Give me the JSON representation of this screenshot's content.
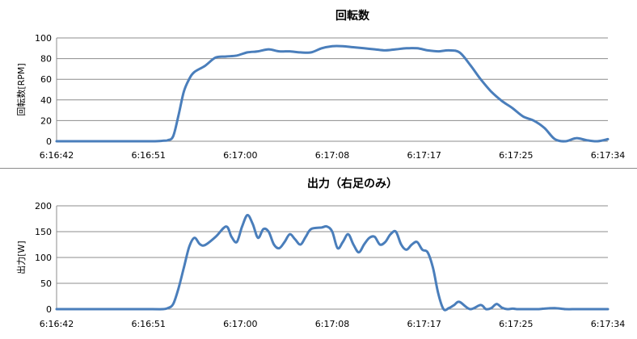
{
  "chart_data": [
    {
      "type": "line",
      "title": "回転数",
      "xlabel": "",
      "ylabel": "回転数[RPM]",
      "ylim": [
        0,
        100
      ],
      "yticks": [
        0,
        20,
        40,
        60,
        80,
        100
      ],
      "xticks": [
        "6:16:42",
        "6:16:51",
        "6:17:00",
        "6:17:08",
        "6:17:17",
        "6:17:25",
        "6:17:34"
      ],
      "x_range_seconds": [
        0,
        52
      ],
      "grid": true,
      "legend": "none",
      "color": "#4a7ebb",
      "series": [
        {
          "x": [
            0,
            5,
            9,
            10,
            10.5,
            11,
            11.5,
            12,
            12.5,
            13,
            14,
            15,
            16,
            17,
            18,
            19,
            20,
            21,
            22,
            23,
            24,
            25,
            26,
            27,
            28,
            29,
            30,
            31,
            32,
            33,
            34,
            35,
            36,
            37,
            38,
            39,
            40,
            41,
            42,
            43,
            44,
            45,
            46,
            47,
            48,
            49,
            50,
            51,
            52
          ],
          "y": [
            0,
            0,
            0,
            0.5,
            1,
            5,
            25,
            48,
            60,
            67,
            73,
            81,
            82,
            83,
            86,
            87,
            89,
            87,
            87,
            86,
            86,
            90,
            92,
            92,
            91,
            90,
            89,
            88,
            89,
            90,
            90,
            88,
            87,
            88,
            86,
            74,
            60,
            48,
            39,
            32,
            24,
            20,
            13,
            2,
            0,
            3,
            1,
            0,
            2
          ]
        }
      ]
    },
    {
      "type": "line",
      "title": "出力（右足のみ）",
      "xlabel": "",
      "ylabel": "出力[W]",
      "ylim": [
        0,
        200
      ],
      "yticks": [
        0,
        50,
        100,
        150,
        200
      ],
      "xticks": [
        "6:16:42",
        "6:16:51",
        "6:17:00",
        "6:17:08",
        "6:17:17",
        "6:17:25",
        "6:17:34"
      ],
      "x_range_seconds": [
        0,
        52
      ],
      "grid": true,
      "legend": "none",
      "color": "#4a7ebb",
      "series": [
        {
          "x": [
            0,
            5,
            9,
            10,
            10.5,
            11,
            11.5,
            12,
            12.5,
            13,
            13.5,
            14,
            15,
            16,
            16.5,
            17,
            17.5,
            18,
            18.5,
            19,
            19.5,
            20,
            20.5,
            21,
            21.5,
            22,
            22.5,
            23,
            23.5,
            24,
            25,
            25.5,
            26,
            26.5,
            27,
            27.5,
            28,
            28.5,
            29,
            29.5,
            30,
            30.5,
            31,
            31.5,
            32,
            32.5,
            33,
            33.5,
            34,
            34.5,
            35,
            35.5,
            36,
            36.5,
            37,
            37.5,
            38,
            39,
            40,
            40.5,
            41,
            41.5,
            42,
            42.5,
            43,
            43.5,
            44,
            44.5,
            45,
            45.5,
            46,
            47,
            48,
            49,
            50,
            51,
            52
          ],
          "y": [
            0,
            0,
            0,
            0,
            2,
            10,
            40,
            80,
            120,
            138,
            126,
            124,
            140,
            160,
            140,
            130,
            160,
            182,
            165,
            138,
            155,
            150,
            125,
            118,
            130,
            145,
            135,
            125,
            140,
            155,
            158,
            160,
            150,
            118,
            130,
            145,
            125,
            110,
            125,
            138,
            140,
            125,
            130,
            145,
            150,
            125,
            115,
            125,
            130,
            115,
            110,
            80,
            30,
            0,
            2,
            8,
            14,
            0,
            8,
            0,
            2,
            10,
            3,
            0,
            1,
            0,
            0,
            0,
            0,
            0,
            1,
            2,
            0,
            0,
            0,
            0,
            0
          ]
        }
      ]
    }
  ]
}
